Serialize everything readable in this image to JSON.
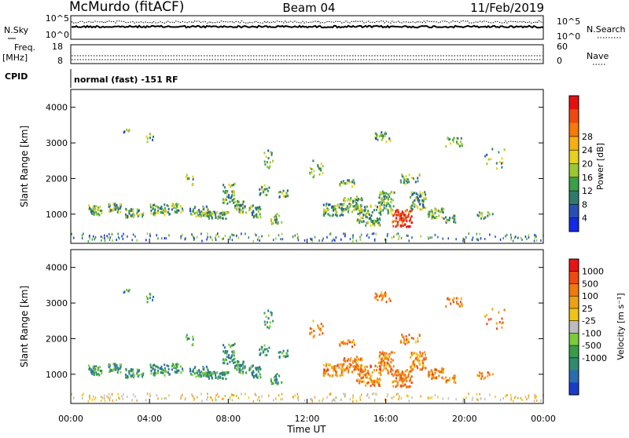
{
  "header": {
    "station": "McMurdo (fitACF)",
    "beam": "Beam 04",
    "date": "11/Feb/2019"
  },
  "top_panel": {
    "left_label": "N.Sky",
    "right_label": "N.Search",
    "tick_top": "10^5",
    "tick_bottom": "10^0"
  },
  "freq_panel": {
    "left_label_1": "Freq.",
    "left_label_2": "[MHz]",
    "left_ticks": [
      "18",
      "8"
    ],
    "right_label": "Nave",
    "right_ticks": [
      "60",
      "0"
    ]
  },
  "cpid_panel": {
    "left_label": "CPID",
    "text": "normal (fast) -151 RF"
  },
  "chart_data": [
    {
      "type": "heatmap",
      "title": "",
      "xlabel": "",
      "ylabel": "Slant Range [km]",
      "ylim": [
        180,
        4500
      ],
      "yticks": [
        "1000",
        "2000",
        "3000",
        "4000"
      ],
      "colorbar": {
        "label": "Power [dB]",
        "ticks": [
          "4",
          "8",
          "12",
          "16",
          "20",
          "24",
          "28"
        ],
        "colors": [
          "#1428e6",
          "#2850b4",
          "#2f7a6c",
          "#3aa04a",
          "#9ac832",
          "#e6d020",
          "#f5b014",
          "#f57a0a",
          "#ee4a10",
          "#e60f0f"
        ]
      }
    },
    {
      "type": "heatmap",
      "title": "",
      "xlabel": "Time UT",
      "ylabel": "Slant Range [km]",
      "ylim": [
        180,
        4500
      ],
      "yticks": [
        "1000",
        "2000",
        "3000",
        "4000"
      ],
      "xticks": [
        "00:00",
        "04:00",
        "08:00",
        "12:00",
        "16:00",
        "20:00",
        "00:00"
      ],
      "colorbar": {
        "label": "Velocity [m s⁻¹]",
        "ticks": [
          "1000",
          "500",
          "100",
          "25",
          "-25",
          "-100",
          "-500",
          "-1000"
        ],
        "colors": [
          "#1a3cc8",
          "#2a6cb0",
          "#2f8a6e",
          "#3a9c4a",
          "#7acc3a",
          "#bcbcbc",
          "#f0c414",
          "#f0a014",
          "#f07a10",
          "#ee4a10",
          "#e61414"
        ]
      }
    }
  ]
}
